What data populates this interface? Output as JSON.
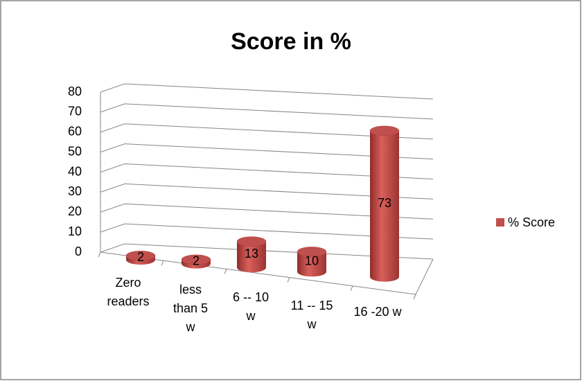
{
  "chart_data": {
    "type": "bar3d",
    "title": "Score in %",
    "categories": [
      "Zero readers",
      "less than 5 w",
      "6 -- 10 w",
      "11 -- 15 w",
      "16 -20 w"
    ],
    "series": [
      {
        "name": "% Score",
        "color": "#c0504d",
        "values": [
          2,
          2,
          13,
          10,
          73
        ]
      }
    ],
    "ylim": [
      0,
      80
    ],
    "yticks": [
      0,
      10,
      20,
      30,
      40,
      50,
      60,
      70,
      80
    ],
    "grid": true,
    "legend": "right"
  }
}
